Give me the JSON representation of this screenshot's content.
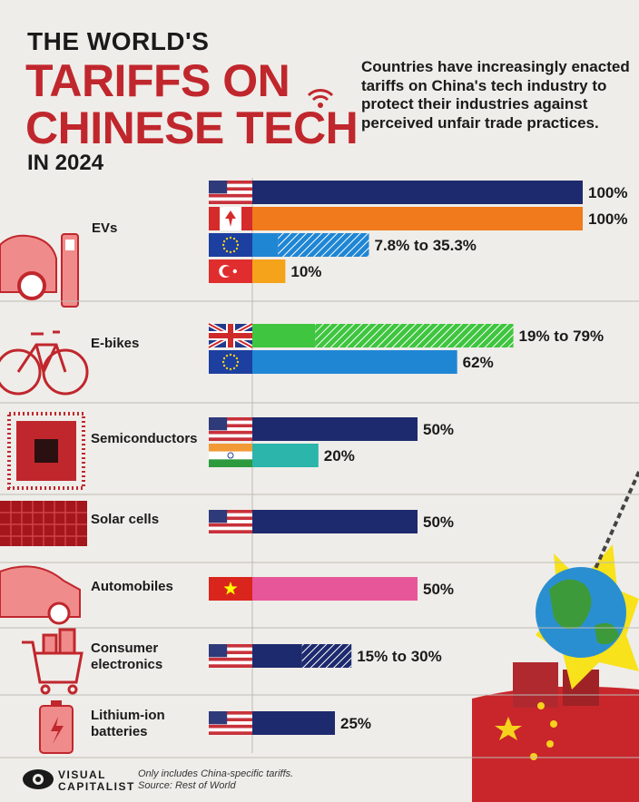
{
  "header": {
    "title_line1": "THE WORLD'S",
    "title_line2": "TARIFFS ON",
    "title_line3": "CHINESE TECH",
    "title_line4": "IN 2024",
    "subtitle": "Countries have increasingly enacted tariffs on China's tech industry to protect their industries against perceived unfair trade practices."
  },
  "colors": {
    "us": "#1e2a6e",
    "canada": "#f07a1c",
    "eu": "#1f86d4",
    "turkey": "#f5a31b",
    "uk": "#3fc53f",
    "india": "#2bb5ab",
    "vietnam": "#e8569a",
    "accent_red": "#c0272d"
  },
  "chart_data": {
    "type": "bar",
    "orientation": "horizontal",
    "unit": "%",
    "xlim": [
      0,
      100
    ],
    "groups": [
      {
        "category": "EVs",
        "icon": "ev-charging-car-icon",
        "bars": [
          {
            "country": "us",
            "low": 100,
            "high": 100,
            "label": "100%"
          },
          {
            "country": "canada",
            "low": 100,
            "high": 100,
            "label": "100%"
          },
          {
            "country": "eu",
            "low": 7.8,
            "high": 35.3,
            "label": "7.8% to 35.3%"
          },
          {
            "country": "turkey",
            "low": 10,
            "high": 10,
            "label": "10%"
          }
        ]
      },
      {
        "category": "E-bikes",
        "icon": "bicycle-icon",
        "bars": [
          {
            "country": "uk",
            "low": 19,
            "high": 79,
            "label": "19% to 79%"
          },
          {
            "country": "eu",
            "low": 62,
            "high": 62,
            "label": "62%"
          }
        ]
      },
      {
        "category": "Semiconductors",
        "icon": "chip-icon",
        "bars": [
          {
            "country": "us",
            "low": 50,
            "high": 50,
            "label": "50%"
          },
          {
            "country": "india",
            "low": 20,
            "high": 20,
            "label": "20%"
          }
        ]
      },
      {
        "category": "Solar cells",
        "icon": "solar-panel-icon",
        "bars": [
          {
            "country": "us",
            "low": 50,
            "high": 50,
            "label": "50%"
          }
        ]
      },
      {
        "category": "Automobiles",
        "icon": "car-icon",
        "bars": [
          {
            "country": "vietnam",
            "low": 50,
            "high": 50,
            "label": "50%"
          }
        ]
      },
      {
        "category": "Consumer electronics",
        "category_lines": [
          "Consumer",
          "electronics"
        ],
        "icon": "shopping-cart-icon",
        "bars": [
          {
            "country": "us",
            "low": 15,
            "high": 30,
            "label": "15% to 30%"
          }
        ]
      },
      {
        "category": "Lithium-ion batteries",
        "category_lines": [
          "Lithium-ion",
          "batteries"
        ],
        "icon": "battery-icon",
        "bars": [
          {
            "country": "us",
            "low": 25,
            "high": 25,
            "label": "25%"
          }
        ]
      }
    ]
  },
  "footer": {
    "brand_line1": "VISUAL",
    "brand_line2": "CAPITALIST",
    "note": "Only includes China-specific tariffs.",
    "source": "Source: Rest of World"
  }
}
